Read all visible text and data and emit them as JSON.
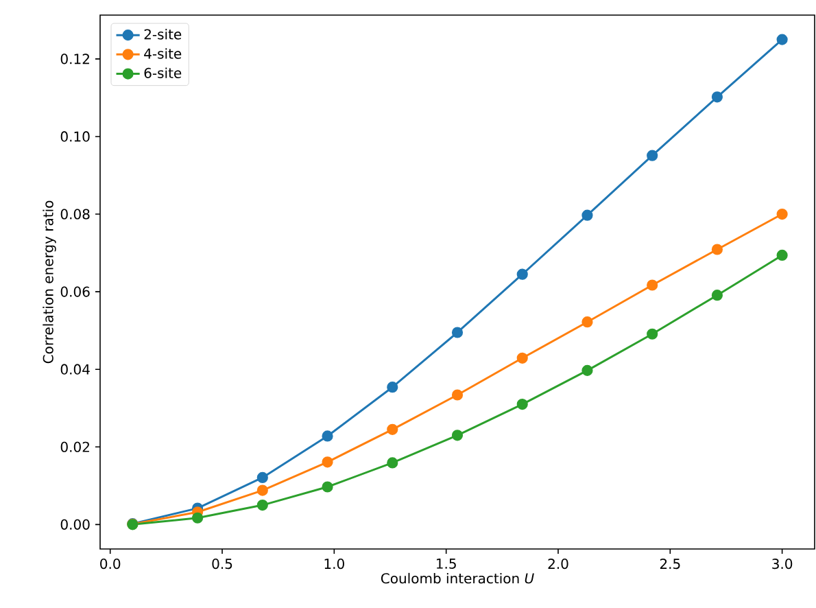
{
  "chart_data": {
    "type": "line",
    "xlabel": "Coulomb interaction *U*",
    "ylabel": "Correlation energy ratio",
    "x": [
      0.1,
      0.39,
      0.68,
      0.97,
      1.26,
      1.55,
      1.84,
      2.13,
      2.42,
      2.71,
      3.0
    ],
    "series": [
      {
        "name": "2-site",
        "color": "#1f77b4",
        "values": [
          0.0002,
          0.0042,
          0.0121,
          0.0228,
          0.0354,
          0.0495,
          0.0645,
          0.0797,
          0.0951,
          0.1102,
          0.125
        ]
      },
      {
        "name": "4-site",
        "color": "#ff7f0e",
        "values": [
          0.0001,
          0.0032,
          0.0088,
          0.0161,
          0.0245,
          0.0334,
          0.0429,
          0.0522,
          0.0617,
          0.0709,
          0.08
        ]
      },
      {
        "name": "6-site",
        "color": "#2ca02c",
        "values": [
          0.0,
          0.0017,
          0.005,
          0.0097,
          0.0159,
          0.023,
          0.031,
          0.0397,
          0.0491,
          0.0591,
          0.0694
        ]
      }
    ],
    "xlim": [
      -0.045,
      3.145
    ],
    "ylim": [
      -0.0063,
      0.1313
    ],
    "xticks": [
      {
        "value": 0,
        "label": "0.0"
      },
      {
        "value": 0.5,
        "label": "0.5"
      },
      {
        "value": 1,
        "label": "1.0"
      },
      {
        "value": 1.5,
        "label": "1.5"
      },
      {
        "value": 2,
        "label": "2.0"
      },
      {
        "value": 2.5,
        "label": "2.5"
      },
      {
        "value": 3,
        "label": "3.0"
      }
    ],
    "yticks": [
      {
        "value": 0,
        "label": "0.00"
      },
      {
        "value": 0.02,
        "label": "0.02"
      },
      {
        "value": 0.04,
        "label": "0.04"
      },
      {
        "value": 0.06,
        "label": "0.06"
      },
      {
        "value": 0.08,
        "label": "0.08"
      },
      {
        "value": 0.1,
        "label": "0.10"
      },
      {
        "value": 0.12,
        "label": "0.12"
      }
    ],
    "legend": "top left",
    "marker": "circle",
    "line_style": "solid",
    "grid": false
  }
}
